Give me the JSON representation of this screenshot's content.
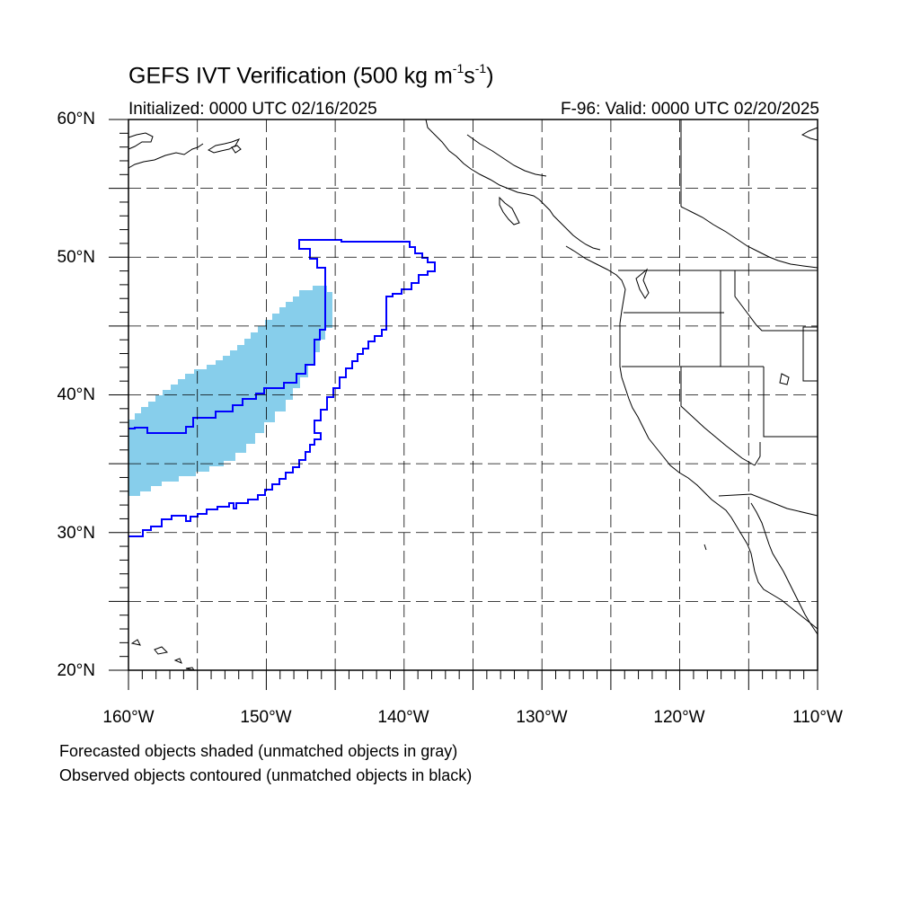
{
  "header": {
    "title_main": "GEFS IVT Verification (500 kg m",
    "title_sup1": "-1",
    "title_mid": "s",
    "title_sup2": "-1",
    "title_end": ")",
    "initialized": "Initialized: 0000 UTC 02/16/2025",
    "valid": "F-96: Valid: 0000 UTC 02/20/2025"
  },
  "axes": {
    "lat_labels": [
      "60°N",
      "50°N",
      "40°N",
      "30°N",
      "20°N"
    ],
    "lon_labels": [
      "160°W",
      "150°W",
      "140°W",
      "130°W",
      "120°W",
      "110°W"
    ],
    "lat_range": [
      20,
      60
    ],
    "lon_range": [
      -160,
      -110
    ]
  },
  "legend": {
    "line1": "Forecasted objects shaded (unmatched objects in gray)",
    "line2": "Observed objects contoured (unmatched objects in black)"
  },
  "colors": {
    "forecast_fill": "#87ceeb",
    "observed_contour": "#0000ff",
    "coastline": "#000000",
    "grid": "#000000"
  }
}
